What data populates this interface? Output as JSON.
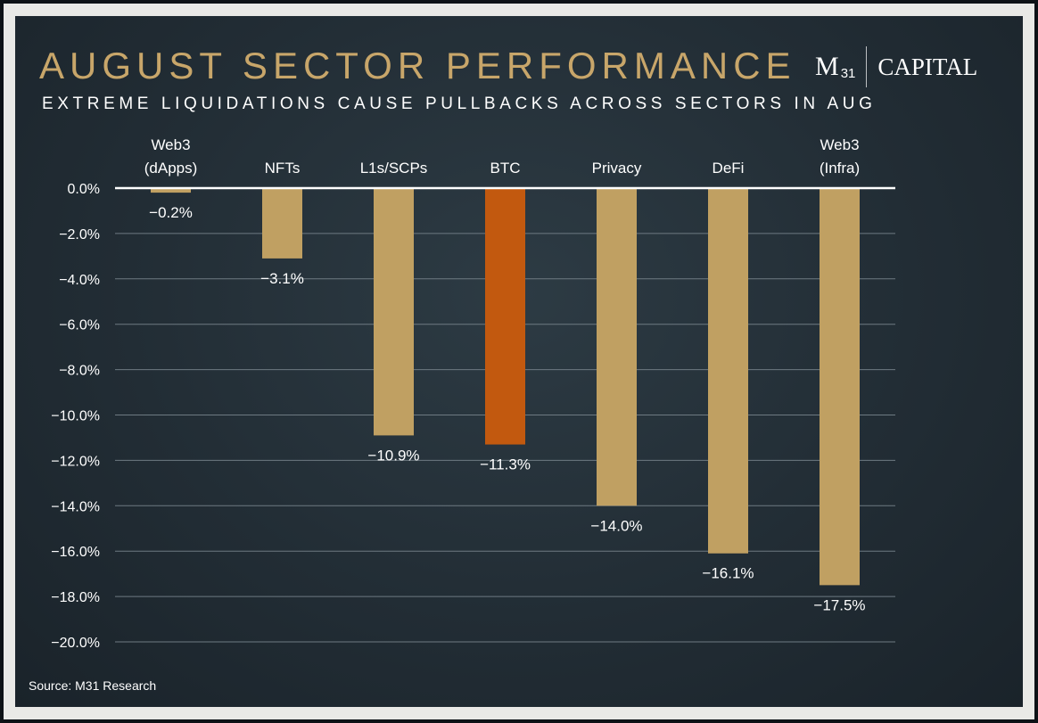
{
  "title": "AUGUST SECTOR PERFORMANCE",
  "subtitle": "EXTREME LIQUIDATIONS CAUSE PULLBACKS ACROSS SECTORS IN AUG",
  "logo": {
    "mark": "M",
    "mark_sub": "31",
    "name": "CAPITAL"
  },
  "source": "Source: M31 Research",
  "colors": {
    "title": "#c8a66a",
    "bar": "#c0a062",
    "highlight": "#c2590f",
    "background": "#222d35",
    "frame": "#e9e9e6"
  },
  "chart_data": {
    "type": "bar",
    "categories": [
      [
        "Web3",
        "(dApps)"
      ],
      [
        "NFTs"
      ],
      [
        "L1s/SCPs"
      ],
      [
        "BTC"
      ],
      [
        "Privacy"
      ],
      [
        "DeFi"
      ],
      [
        "Web3",
        "(Infra)"
      ]
    ],
    "values": [
      -0.2,
      -3.1,
      -10.9,
      -11.3,
      -14.0,
      -16.1,
      -17.5
    ],
    "value_labels": [
      "−0.2%",
      "−3.1%",
      "−10.9%",
      "−11.3%",
      "−14.0%",
      "−16.1%",
      "−17.5%"
    ],
    "highlight_category": "BTC",
    "ylim": [
      -20,
      0
    ],
    "yticks": [
      0,
      -2,
      -4,
      -6,
      -8,
      -10,
      -12,
      -14,
      -16,
      -18,
      -20
    ],
    "ytick_labels": [
      "0.0%",
      "−2.0%",
      "−4.0%",
      "−6.0%",
      "−8.0%",
      "−10.0%",
      "−12.0%",
      "−14.0%",
      "−16.0%",
      "−18.0%",
      "−20.0%"
    ],
    "category_axis_position": "top",
    "grid": true
  }
}
